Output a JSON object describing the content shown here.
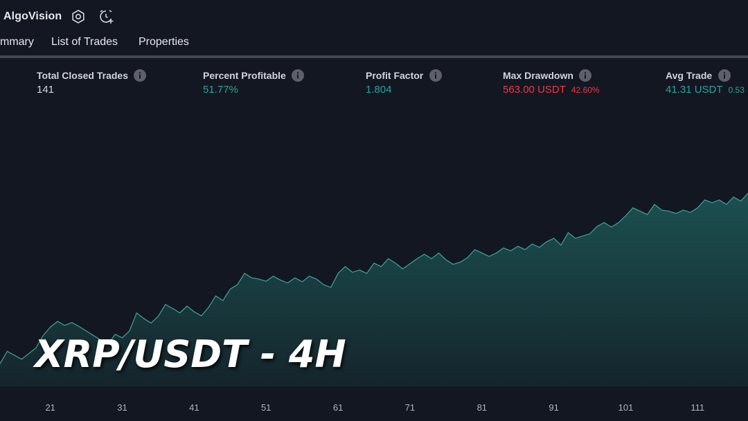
{
  "header": {
    "strategy_name": "AlgoVision",
    "icons": [
      "settings-icon",
      "alarm-add-icon"
    ]
  },
  "tabs": [
    {
      "label": "mmary"
    },
    {
      "label": "List of Trades"
    },
    {
      "label": "Properties"
    }
  ],
  "metrics": [
    {
      "label": "Total Closed Trades",
      "value": "141",
      "color": "#d1d4dc"
    },
    {
      "label": "Percent Profitable",
      "value": "51.77%",
      "color": "#26a69a"
    },
    {
      "label": "Profit Factor",
      "value": "1.804",
      "color": "#26a69a"
    },
    {
      "label": "Max Drawdown",
      "value": "563.00 USDT",
      "sub": "42.60%",
      "color": "#f23645"
    },
    {
      "label": "Avg Trade",
      "value": "41.31 USDT",
      "sub": "0.53",
      "color": "#26a69a"
    }
  ],
  "overlay_title": "XRP/USDT - 4H",
  "colors": {
    "background": "#131722",
    "line": "#3a9e93",
    "positive": "#26a69a",
    "negative": "#f23645"
  },
  "chart_data": {
    "type": "area",
    "xlabel": "",
    "ylabel": "",
    "x_ticks": [
      "21",
      "31",
      "41",
      "51",
      "61",
      "71",
      "81",
      "91",
      "101",
      "111"
    ],
    "x_range": [
      14,
      118
    ],
    "y_range": [
      0,
      500
    ],
    "grid": false,
    "series": [
      {
        "x": [
          14,
          15,
          16,
          17,
          18,
          19,
          20,
          21,
          22,
          23,
          24,
          25,
          26,
          27,
          28,
          29,
          30,
          31,
          32,
          33,
          34,
          35,
          36,
          37,
          38,
          39,
          40,
          41,
          42,
          43,
          44,
          45,
          46,
          47,
          48,
          49,
          50,
          51,
          52,
          53,
          54,
          55,
          56,
          57,
          58,
          59,
          60,
          61,
          62,
          63,
          64,
          65,
          66,
          67,
          68,
          69,
          70,
          71,
          72,
          73,
          74,
          75,
          76,
          77,
          78,
          79,
          80,
          81,
          82,
          83,
          84,
          85,
          86,
          87,
          88,
          89,
          90,
          91,
          92,
          93,
          94,
          95,
          96,
          97,
          98,
          99,
          100,
          101,
          102,
          103,
          104,
          105,
          106,
          107,
          108,
          109,
          110,
          111,
          112,
          113,
          114,
          115,
          116,
          117,
          118
        ],
        "values": [
          40,
          62,
          55,
          48,
          58,
          68,
          90,
          105,
          115,
          108,
          113,
          106,
          98,
          90,
          82,
          74,
          92,
          86,
          98,
          130,
          120,
          112,
          124,
          145,
          138,
          130,
          142,
          132,
          125,
          140,
          160,
          152,
          172,
          180,
          200,
          192,
          190,
          186,
          195,
          188,
          183,
          192,
          185,
          195,
          190,
          180,
          175,
          200,
          212,
          202,
          206,
          200,
          218,
          212,
          226,
          218,
          208,
          217,
          226,
          234,
          226,
          236,
          224,
          216,
          220,
          228,
          242,
          236,
          230,
          236,
          245,
          240,
          248,
          242,
          252,
          246,
          256,
          262,
          250,
          272,
          262,
          266,
          270,
          283,
          290,
          282,
          290,
          302,
          316,
          310,
          304,
          322,
          312,
          310,
          306,
          312,
          308,
          316,
          330,
          325,
          330,
          322,
          335,
          328,
          342
        ]
      }
    ]
  }
}
